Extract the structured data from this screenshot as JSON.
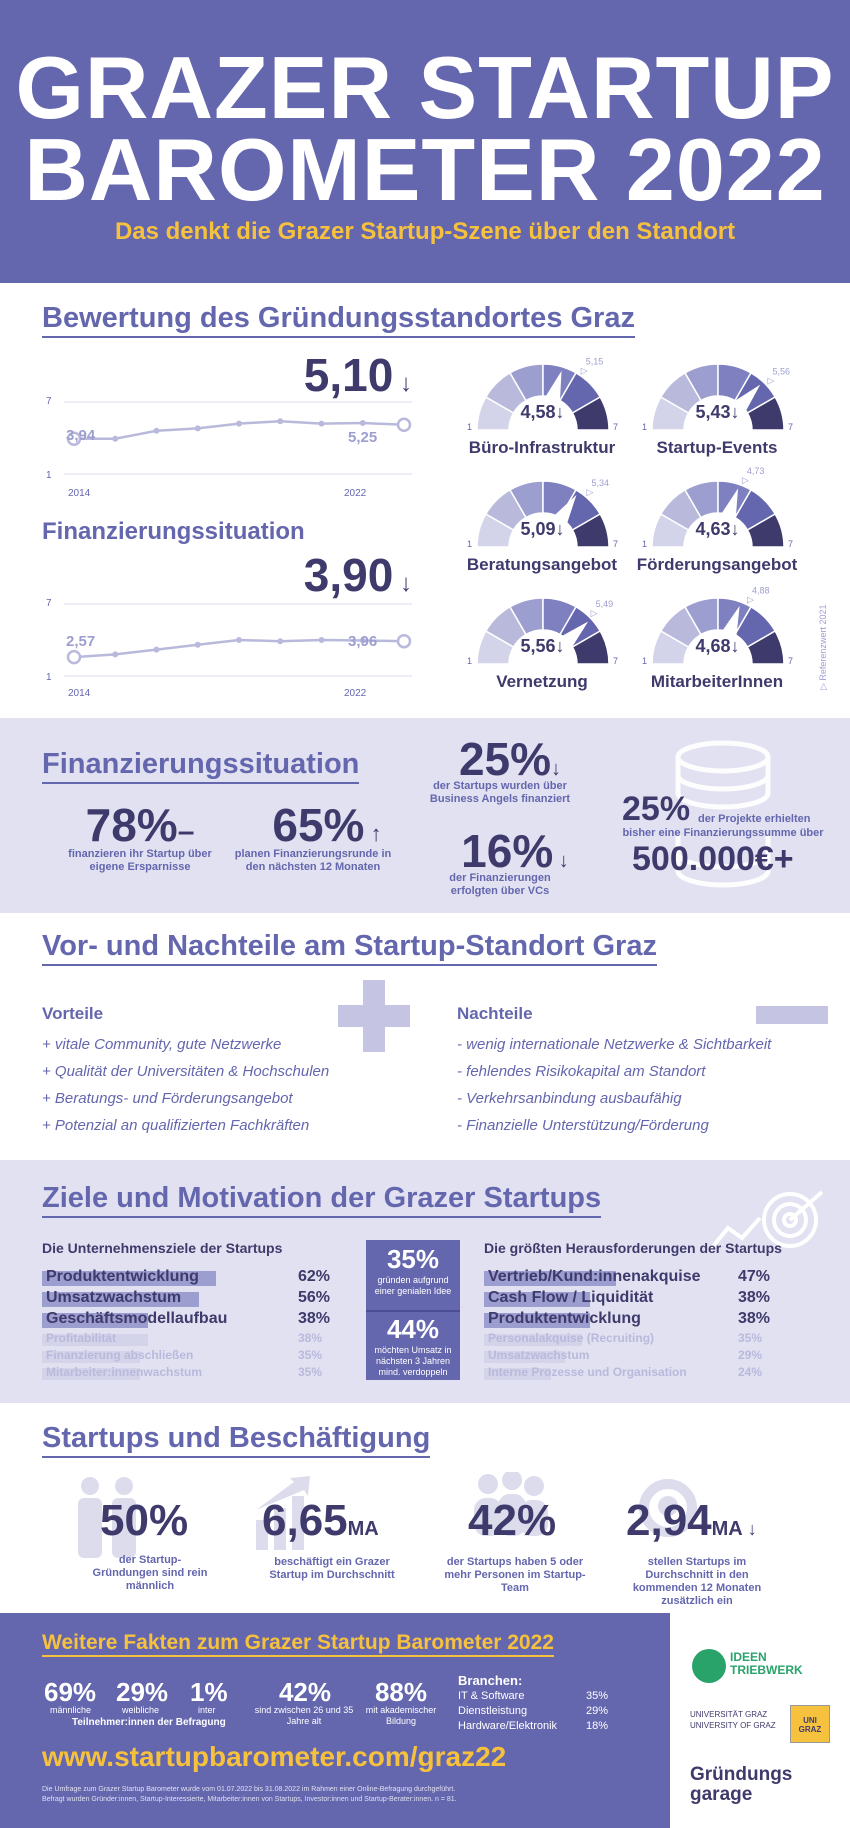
{
  "header": {
    "title_line1": "GRAZER STARTUP",
    "title_line2": "BAROMETER 2022",
    "subtitle": "Das denkt die Grazer Startup-Szene über den Standort"
  },
  "rating": {
    "heading": "Bewertung des Gründungsstandortes Graz",
    "value": "5,10",
    "start_value": "3,94",
    "ref_value": "5,25",
    "y_max": "7",
    "y_min": "1",
    "x_start": "2014",
    "x_end": "2022",
    "series": [
      3.94,
      3.94,
      4.6,
      4.8,
      5.2,
      5.4,
      5.2,
      5.25,
      5.1
    ]
  },
  "financing_trend": {
    "heading": "Finanzierungssituation",
    "value": "3,90",
    "start_value": "2,57",
    "ref_value": "3,96",
    "y_max": "7",
    "y_min": "1",
    "x_start": "2014",
    "x_end": "2022",
    "series": [
      2.57,
      2.8,
      3.2,
      3.6,
      4.0,
      3.9,
      4.0,
      3.96,
      3.9
    ]
  },
  "gauges": [
    {
      "label": "Büro-Infrastruktur",
      "value": "4,58",
      "ref": "5,15",
      "v": 4.58,
      "r": 5.15
    },
    {
      "label": "Startup-Events",
      "value": "5,43",
      "ref": "5,56",
      "v": 5.43,
      "r": 5.56
    },
    {
      "label": "Beratungsangebot",
      "value": "5,09",
      "ref": "5,34",
      "v": 5.09,
      "r": 5.34
    },
    {
      "label": "Förderungsangebot",
      "value": "4,63",
      "ref": "4,73",
      "v": 4.63,
      "r": 4.73
    },
    {
      "label": "Vernetzung",
      "value": "5,56",
      "ref": "5,49",
      "v": 5.56,
      "r": 5.49
    },
    {
      "label": "MitarbeiterInnen",
      "value": "4,68",
      "ref": "4,88",
      "v": 4.68,
      "r": 4.88
    }
  ],
  "gauge_scale": {
    "min": "1",
    "max": "7"
  },
  "reference_note": "▷ Referenzwert 2021",
  "finance": {
    "heading": "Finanzierungssituation",
    "own_pct": "78%",
    "own_trend": "–",
    "own_text": "finanzieren ihr Startup über eigene Ersparnisse",
    "round_pct": "65%",
    "round_text": "planen Finanzierungsrunde in den nächsten 12 Monaten",
    "ba_pct": "25%",
    "ba_text": "der Startups wurden über Business Angels finanziert",
    "vc_pct": "16%",
    "vc_text": "der Finanzierungen erfolgten über VCs",
    "sum_pct": "25%",
    "sum_text1": "der Projekte erhielten",
    "sum_text2": "bisher eine Finanzierungssumme über",
    "sum_value": "500.000€+"
  },
  "proscons": {
    "heading": "Vor- und Nachteile am Startup-Standort Graz",
    "pros_title": "Vorteile",
    "pros": [
      "+ vitale Community, gute Netzwerke",
      "+ Qualität der Universitäten & Hochschulen",
      "+ Beratungs- und Förderungsangebot",
      "+ Potenzial an qualifizierten Fachkräften"
    ],
    "cons_title": "Nachteile",
    "cons": [
      "- wenig internationale Netzwerke & Sichtbarkeit",
      "- fehlendes Risikokapital am Standort",
      "- Verkehrsanbindung ausbaufähig",
      "- Finanzielle Unterstützung/Förderung"
    ]
  },
  "goals": {
    "heading": "Ziele und Motivation der Grazer Startups",
    "left_title": "Die Unternehmensziele der Startups",
    "left": [
      {
        "label": "Produktentwicklung",
        "pct": "62%",
        "v": 62
      },
      {
        "label": "Umsatzwachstum",
        "pct": "56%",
        "v": 56
      },
      {
        "label": "Geschäftsmodellaufbau",
        "pct": "38%",
        "v": 38
      },
      {
        "label": "Profitabilität",
        "pct": "38%",
        "v": 38
      },
      {
        "label": "Finanzierung abschließen",
        "pct": "35%",
        "v": 35
      },
      {
        "label": "Mitarbeiter:innenwachstum",
        "pct": "35%",
        "v": 35
      }
    ],
    "mid1_pct": "35%",
    "mid1_text": "gründen aufgrund einer genialen Idee",
    "mid2_pct": "44%",
    "mid2_text": "möchten Umsatz in nächsten 3 Jahren mind. verdoppeln",
    "right_title": "Die größten Herausforderungen der Startups",
    "right": [
      {
        "label": "Vertrieb/Kund:innenakquise",
        "pct": "47%",
        "v": 47
      },
      {
        "label": "Cash Flow / Liquidität",
        "pct": "38%",
        "v": 38
      },
      {
        "label": "Produktentwicklung",
        "pct": "38%",
        "v": 38
      },
      {
        "label": "Personalakquise (Recruiting)",
        "pct": "35%",
        "v": 35
      },
      {
        "label": "Umsatzwachstum",
        "pct": "29%",
        "v": 29
      },
      {
        "label": "Interne Prozesse und Organisation",
        "pct": "24%",
        "v": 24
      }
    ]
  },
  "employment": {
    "heading": "Startups und Beschäftigung",
    "s1_val": "50%",
    "s1_text": "der Startup-Gründungen sind rein männlich",
    "s2_val": "6,65",
    "s2_unit": "MA",
    "s2_text": "beschäftigt ein Grazer Startup im Durchschnitt",
    "s3_val": "42%",
    "s3_text": "der Startups haben 5 oder mehr Personen im Startup-Team",
    "s4_val": "2,94",
    "s4_unit": "MA",
    "s4_text": "stellen Startups im Durchschnitt in den kommenden 12 Monaten zusätzlich ein"
  },
  "facts": {
    "heading": "Weitere Fakten zum Grazer Startup Barometer 2022",
    "male": "69%",
    "male_label": "männliche",
    "female": "29%",
    "female_label": "weibliche",
    "inter": "1%",
    "inter_label": "inter",
    "participants": "Teilnehmer:innen der Befragung",
    "age_pct": "42%",
    "age_text": "sind zwischen 26 und 35 Jahre alt",
    "edu_pct": "88%",
    "edu_text": "mit akademischer Bildung",
    "branches_title": "Branchen:",
    "branches": [
      {
        "name": "IT & Software",
        "pct": "35%"
      },
      {
        "name": "Dienstleistung",
        "pct": "29%"
      },
      {
        "name": "Hardware/Elektronik",
        "pct": "18%"
      }
    ],
    "url": "www.startupbarometer.com/graz22",
    "footnote1": "Die Umfrage zum Grazer Startup Barometer wurde vom 01.07.2022 bis 31.08.2022 im Rahmen einer Online-Befragung durchgeführt.",
    "footnote2": "Befragt wurden Gründer:innen, Startup-Interessierte, Mitarbeiter:innen von Startups, Investor:innen und Startup-Berater:innen. n = 81."
  },
  "partners": {
    "ideen_line1": "IDEEN",
    "ideen_line2": "TRIEBWERK",
    "uni_line1": "UNIVERSITÄT GRAZ",
    "uni_line2": "UNIVERSITY OF GRAZ",
    "uni_badge": "UNI GRAZ",
    "garage_line1": "Gründungs",
    "garage_line2": "garage"
  },
  "colors": {
    "primary": "#6466ae",
    "dark": "#3e3a6b",
    "accent": "#f6c23e",
    "band": "#e1e1f1",
    "green": "#2aa36b"
  }
}
